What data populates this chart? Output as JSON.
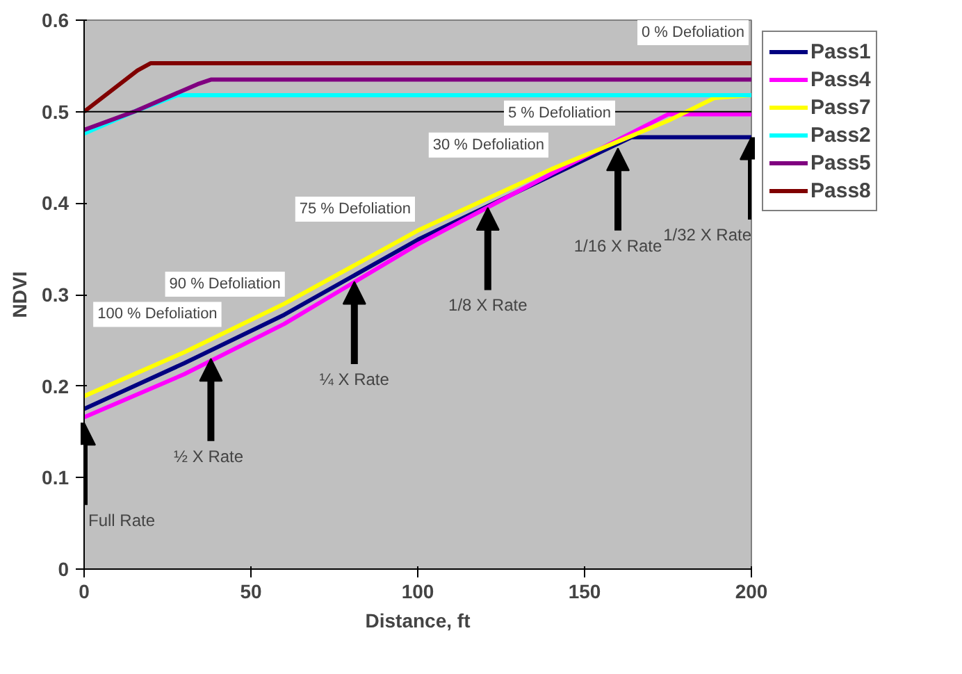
{
  "chart_data": {
    "type": "line",
    "xlabel": "Distance, ft",
    "ylabel": "NDVI",
    "xlim": [
      0,
      200
    ],
    "ylim": [
      0,
      0.6
    ],
    "xticks": [
      0,
      50,
      100,
      150,
      200
    ],
    "yticks": [
      0,
      0.1,
      0.2,
      0.3,
      0.4,
      0.5,
      0.6
    ],
    "grid": false,
    "legend": "right",
    "ref_lines": [
      {
        "axis": "y",
        "value": 0.5,
        "color": "#000000"
      }
    ],
    "series": [
      {
        "name": "Pass1",
        "color": "#000080",
        "x": [
          0,
          30,
          60,
          100,
          140,
          164,
          200
        ],
        "values": [
          0.175,
          0.225,
          0.278,
          0.36,
          0.43,
          0.472,
          0.472
        ]
      },
      {
        "name": "Pass4",
        "color": "#ff00ff",
        "x": [
          0,
          30,
          60,
          100,
          140,
          175,
          200
        ],
        "values": [
          0.166,
          0.213,
          0.268,
          0.355,
          0.432,
          0.497,
          0.497
        ]
      },
      {
        "name": "Pass7",
        "color": "#ffff00",
        "x": [
          0,
          30,
          60,
          100,
          140,
          175,
          189,
          200
        ],
        "values": [
          0.189,
          0.237,
          0.29,
          0.37,
          0.437,
          0.49,
          0.515,
          0.518
        ]
      },
      {
        "name": "Pass2",
        "color": "#00ffff",
        "x": [
          0,
          15,
          28,
          200
        ],
        "values": [
          0.476,
          0.5,
          0.518,
          0.518
        ]
      },
      {
        "name": "Pass5",
        "color": "#800080",
        "x": [
          0,
          15,
          34,
          38,
          200
        ],
        "values": [
          0.48,
          0.5,
          0.53,
          0.535,
          0.535
        ]
      },
      {
        "name": "Pass8",
        "color": "#800000",
        "x": [
          0,
          16,
          20,
          200
        ],
        "values": [
          0.5,
          0.545,
          0.553,
          0.553
        ]
      }
    ],
    "annotations": [
      {
        "text": "100 % Defoliation",
        "x": 42,
        "y": 0.245
      },
      {
        "text": "90 % Defoliation",
        "x": 61,
        "y": 0.278
      },
      {
        "text": "75 % Defoliation",
        "x": 100,
        "y": 0.36
      },
      {
        "text": "30 % Defoliation",
        "x": 140,
        "y": 0.43
      },
      {
        "text": "5 % Defoliation",
        "x": 160,
        "y": 0.465
      },
      {
        "text": "0 % Defoliation",
        "x": 200,
        "y": 0.553
      },
      {
        "text": "Full Rate",
        "x": 0,
        "y": 0.16
      },
      {
        "text": "½ X  Rate",
        "x": 38,
        "y": 0.23
      },
      {
        "text": "¼ X Rate",
        "x": 81,
        "y": 0.314
      },
      {
        "text": "1/8 X Rate",
        "x": 121,
        "y": 0.395
      },
      {
        "text": "1/16 X Rate",
        "x": 160,
        "y": 0.46
      },
      {
        "text": "1/32 X Rate",
        "x": 200,
        "y": 0.472
      }
    ]
  }
}
